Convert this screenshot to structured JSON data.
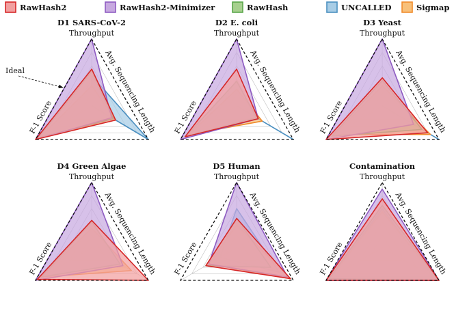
{
  "chart_data": {
    "type": "radar",
    "legend": [
      {
        "name": "RawHash2",
        "fill": "#f2a0a0",
        "stroke": "#d62728"
      },
      {
        "name": "RawHash2-Minimizer",
        "fill": "#c7a9e0",
        "stroke": "#8e5bc2"
      },
      {
        "name": "RawHash",
        "fill": "#a7d08f",
        "stroke": "#5aa64a"
      },
      {
        "name": "UNCALLED",
        "fill": "#a8cde6",
        "stroke": "#4a8fc0"
      },
      {
        "name": "Sigmap",
        "fill": "#f8c07a",
        "stroke": "#f08c2c"
      }
    ],
    "axes": [
      "Throughput",
      "Avg. Sequencing Length",
      "F-1 Score"
    ],
    "range": [
      0,
      1
    ],
    "annotation": "Ideal",
    "charts": [
      {
        "title": "D1 SARS-CoV-2",
        "series": [
          {
            "name": "UNCALLED",
            "values": [
              0.45,
              1.0,
              0.0
            ]
          },
          {
            "name": "Sigmap",
            "values": [
              0.3,
              0.42,
              0.9
            ]
          },
          {
            "name": "RawHash",
            "values": [
              0.52,
              0.38,
              0.95
            ]
          },
          {
            "name": "RawHash2-Minimizer",
            "values": [
              1.0,
              0.35,
              1.0
            ]
          },
          {
            "name": "RawHash2",
            "values": [
              0.55,
              0.42,
              1.0
            ]
          }
        ]
      },
      {
        "title": "D2 E. coli",
        "series": [
          {
            "name": "UNCALLED",
            "values": [
              0.0,
              1.0,
              0.0
            ]
          },
          {
            "name": "Sigmap",
            "values": [
              0.25,
              0.45,
              0.85
            ]
          },
          {
            "name": "RawHash",
            "values": [
              0.37,
              0.35,
              0.9
            ]
          },
          {
            "name": "RawHash2-Minimizer",
            "values": [
              1.0,
              0.38,
              1.0
            ]
          },
          {
            "name": "RawHash2",
            "values": [
              0.55,
              0.38,
              0.92
            ]
          }
        ]
      },
      {
        "title": "D3 Yeast",
        "series": [
          {
            "name": "UNCALLED",
            "values": [
              0.0,
              1.0,
              0.0
            ]
          },
          {
            "name": "Sigmap",
            "values": [
              0.3,
              0.85,
              0.85
            ]
          },
          {
            "name": "RawHash",
            "values": [
              0.38,
              0.7,
              0.9
            ]
          },
          {
            "name": "RawHash2-Minimizer",
            "values": [
              1.0,
              0.55,
              1.0
            ]
          },
          {
            "name": "RawHash2",
            "values": [
              0.42,
              0.8,
              1.0
            ]
          }
        ]
      },
      {
        "title": "D4 Green Algae",
        "series": [
          {
            "name": "UNCALLED",
            "values": [
              0.0,
              0.0,
              0.0
            ]
          },
          {
            "name": "Sigmap",
            "values": [
              0.3,
              0.7,
              0.9
            ]
          },
          {
            "name": "RawHash",
            "values": [
              0.4,
              0.5,
              0.9
            ]
          },
          {
            "name": "RawHash2-Minimizer",
            "values": [
              1.0,
              0.55,
              1.0
            ]
          },
          {
            "name": "RawHash2",
            "values": [
              0.42,
              1.0,
              0.97
            ]
          }
        ]
      },
      {
        "title": "D5 Human",
        "series": [
          {
            "name": "UNCALLED",
            "values": [
              0.6,
              0.75,
              0.3
            ]
          },
          {
            "name": "Sigmap",
            "values": [
              0.35,
              0.95,
              0.5
            ]
          },
          {
            "name": "RawHash",
            "values": [
              0.45,
              0.6,
              0.55
            ]
          },
          {
            "name": "RawHash2-Minimizer",
            "values": [
              1.0,
              0.9,
              0.5
            ]
          },
          {
            "name": "RawHash2",
            "values": [
              0.45,
              0.95,
              0.55
            ]
          }
        ]
      },
      {
        "title": "Contamination",
        "series": [
          {
            "name": "UNCALLED",
            "values": [
              0.6,
              0.9,
              0.9
            ]
          },
          {
            "name": "Sigmap",
            "values": [
              0.55,
              1.0,
              0.95
            ]
          },
          {
            "name": "RawHash",
            "values": [
              0.65,
              1.0,
              0.95
            ]
          },
          {
            "name": "RawHash2-Minimizer",
            "values": [
              0.9,
              1.0,
              1.0
            ]
          },
          {
            "name": "RawHash2",
            "values": [
              0.75,
              1.0,
              1.0
            ]
          }
        ]
      }
    ]
  }
}
